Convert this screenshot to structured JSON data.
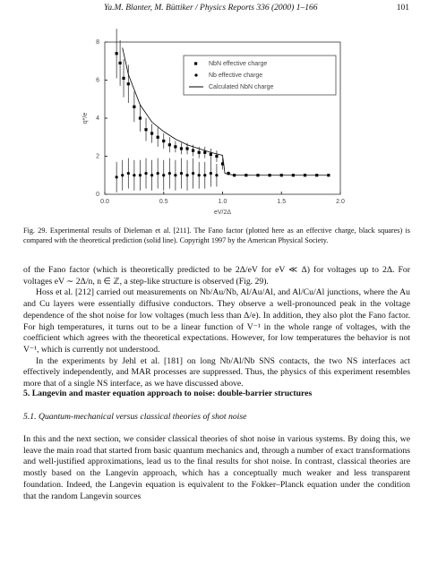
{
  "header": {
    "running": "Ya.M. Blanter, M. Büttiker / Physics Reports 336 (2000) 1–166",
    "page": "101"
  },
  "chart_data": {
    "type": "scatter",
    "xlabel": "eV/2Δ",
    "ylabel": "q*/e",
    "xlim": [
      0,
      2
    ],
    "ylim": [
      0,
      8
    ],
    "xticks": [
      {
        "value": 0,
        "label": "0.0"
      },
      {
        "value": 0.5,
        "label": "0.5"
      },
      {
        "value": 1,
        "label": "1.0"
      },
      {
        "value": 1.5,
        "label": "1.5"
      },
      {
        "value": 2,
        "label": "2.0"
      }
    ],
    "yticks": [
      0,
      2,
      4,
      6,
      8
    ],
    "grid": false,
    "legend": "top-right",
    "series": [
      {
        "name": "NbN effective charge",
        "color": "#000000",
        "marker": "square",
        "x": [
          0.1,
          0.13,
          0.16,
          0.2,
          0.25,
          0.3,
          0.35,
          0.4,
          0.45,
          0.5,
          0.55,
          0.6,
          0.65,
          0.7,
          0.75,
          0.8,
          0.85,
          0.9,
          0.95,
          1.0,
          1.05,
          1.1,
          1.2,
          1.3,
          1.4,
          1.5,
          1.6,
          1.7,
          1.8,
          1.9
        ],
        "values": [
          7.4,
          6.9,
          6.1,
          5.8,
          4.6,
          4.0,
          3.4,
          3.2,
          3.0,
          2.8,
          2.6,
          2.5,
          2.4,
          2.4,
          2.3,
          2.2,
          2.2,
          2.1,
          2.0,
          1.6,
          1.1,
          1.0,
          1.0,
          1.0,
          1.0,
          1.0,
          1.0,
          1.0,
          1.0,
          1.0
        ],
        "errors": [
          1.3,
          1.2,
          1.0,
          1.0,
          0.8,
          0.7,
          0.6,
          0.5,
          0.5,
          0.4,
          0.4,
          0.3,
          0.3,
          0.3,
          0.3,
          0.3,
          0.3,
          0.3,
          0.3,
          0.3,
          0.1,
          0.05,
          0.05,
          0.05,
          0.05,
          0.05,
          0.05,
          0.05,
          0.05,
          0.05
        ]
      },
      {
        "name": "Nb effective charge",
        "color": "#000000",
        "marker": "circle",
        "x": [
          0.1,
          0.15,
          0.2,
          0.25,
          0.3,
          0.35,
          0.4,
          0.45,
          0.5,
          0.55,
          0.6,
          0.65,
          0.7,
          0.75,
          0.8,
          0.85,
          0.9,
          0.95
        ],
        "values": [
          0.9,
          1.0,
          1.1,
          1.0,
          1.0,
          1.1,
          1.0,
          1.1,
          1.0,
          1.1,
          1.0,
          1.1,
          1.0,
          1.1,
          1.0,
          1.0,
          1.1,
          1.0
        ],
        "errors": [
          0.8,
          0.8,
          0.8,
          0.8,
          0.8,
          0.8,
          0.8,
          0.8,
          0.8,
          0.8,
          0.8,
          0.8,
          0.8,
          0.8,
          0.7,
          0.7,
          0.7,
          0.6
        ]
      },
      {
        "name": "Calculated NbN charge",
        "color": "#000000",
        "marker": "line",
        "x": [
          0.15,
          0.2,
          0.3,
          0.4,
          0.5,
          0.6,
          0.7,
          0.8,
          0.9,
          1.0,
          1.02,
          1.1,
          1.5,
          1.9
        ],
        "values": [
          7.7,
          6.3,
          4.7,
          3.8,
          3.3,
          2.9,
          2.6,
          2.4,
          2.2,
          2.05,
          1.1,
          1.0,
          1.0,
          1.0
        ]
      }
    ]
  },
  "caption": "Fig. 29. Experimental results of Dieleman et al. [211]. The Fano factor (plotted here as an effective charge, black squares) is compared with the theoretical prediction (solid line). Copyright 1997 by the American Physical Society.",
  "body": [
    "of the Fano factor (which is theoretically predicted to be 2Δ/eV for eV ≪ Δ) for voltages up to 2Δ. For voltages eV ∼ 2Δ/n, n ∈ ℤ, a step-like structure is observed (Fig. 29).",
    "Hoss et al. [212] carried out measurements on Nb/Au/Nb, Al/Au/Al, and Al/Cu/Al junctions, where the Au and Cu layers were essentially diffusive conductors. They observe a well-pronounced peak in the voltage dependence of the shot noise for low voltages (much less than Δ/e). In addition, they also plot the Fano factor. For high temperatures, it turns out to be a linear function of V⁻¹ in the whole range of voltages, with the coefficient which agrees with the theoretical expectations. However, for low temperatures the behavior is not V⁻¹, which is currently not understood.",
    "In the experiments by Jehl et al. [181] on long Nb/Al/Nb SNS contacts, the two NS interfaces act effectively independently, and MAR processes are suppressed. Thus, the physics of this experiment resembles more that of a single NS interface, as we have discussed above."
  ],
  "section": "5. Langevin and master equation approach to noise: double-barrier structures",
  "subsection": "5.1. Quantum-mechanical versus classical theories of shot noise",
  "body2": [
    "In this and the next section, we consider classical theories of shot noise in various systems. By doing this, we leave the main road that started from basic quantum mechanics and, through a number of exact transformations and well-justified approximations, lead us to the final results for shot noise. In contrast, classical theories are mostly based on the Langevin approach, which has a conceptually much weaker and less transparent foundation. Indeed, the Langevin equation is equivalent to the Fokker–Planck equation under the condition that the random Langevin sources"
  ]
}
